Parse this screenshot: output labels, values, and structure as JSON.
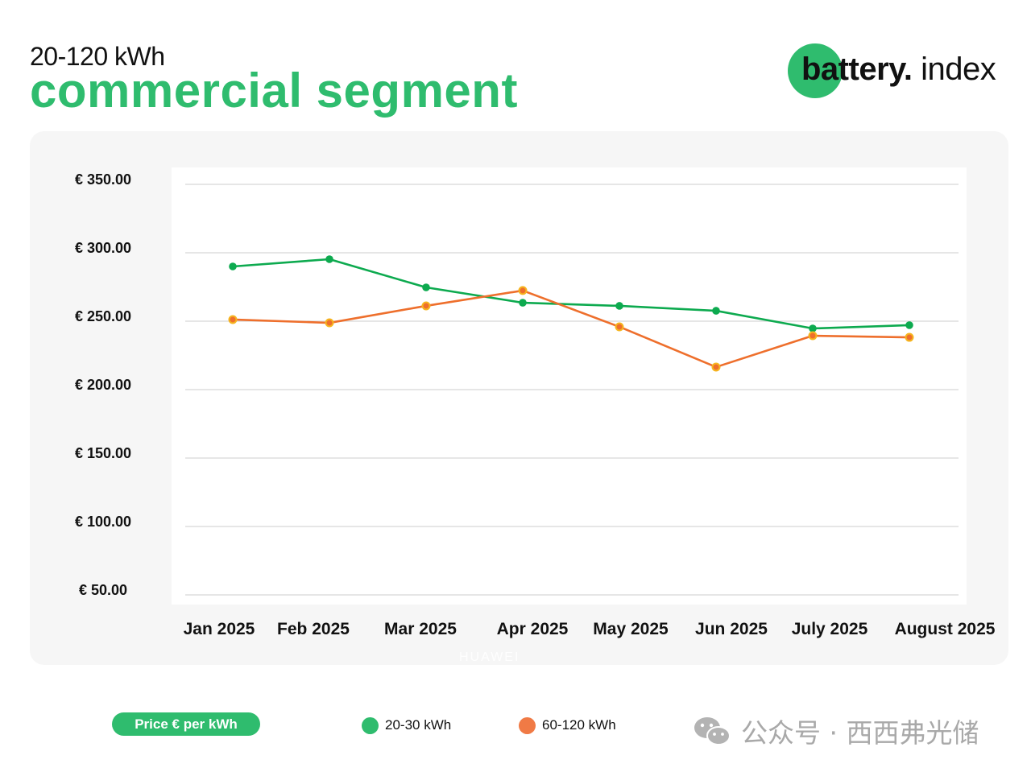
{
  "header": {
    "subtitle": "20-120 kWh",
    "title": "commercial segment"
  },
  "logo": {
    "bold": "battery.",
    "light": " index",
    "accent_color": "#2fbc6e"
  },
  "legend": {
    "unit_badge": "Price € per kWh",
    "items": [
      {
        "label": "20-30 kWh",
        "color": "#2fbc6e"
      },
      {
        "label": "60-120 kWh",
        "color": "#f07a45"
      }
    ]
  },
  "watermark": {
    "text": "公众号 · 西西弗光储",
    "icon": "wechat-icon",
    "faint_logo": "HUAWEI"
  },
  "chart_data": {
    "type": "line",
    "title": "commercial segment",
    "subtitle": "20-120 kWh",
    "xlabel": "",
    "ylabel": "Price € per kWh",
    "categories": [
      "Jan 2025",
      "Feb 2025",
      "Mar 2025",
      "Apr 2025",
      "May 2025",
      "Jun 2025",
      "July 2025",
      "August 2025"
    ],
    "yticks": [
      350,
      300,
      250,
      200,
      150,
      100,
      50
    ],
    "ytick_labels": [
      "€ 350.00",
      "€ 300.00",
      "€ 250.00",
      "€ 200.00",
      "€ 150.00",
      "€ 100.00",
      "€ 50.00"
    ],
    "ylim": [
      50,
      350
    ],
    "grid": true,
    "legend_position": "bottom",
    "series": [
      {
        "name": "20-30 kWh",
        "color": "#0daa4f",
        "marker_color": "#0daa4f",
        "values": [
          290.0,
          295.3,
          274.7,
          263.5,
          261.2,
          257.6,
          244.7,
          247.1
        ]
      },
      {
        "name": "60-120 kWh",
        "color": "#ee6f2c",
        "marker_color": "#f6b51f",
        "values": [
          251.2,
          248.8,
          261.2,
          272.4,
          245.9,
          216.5,
          239.4,
          238.2
        ]
      }
    ]
  }
}
